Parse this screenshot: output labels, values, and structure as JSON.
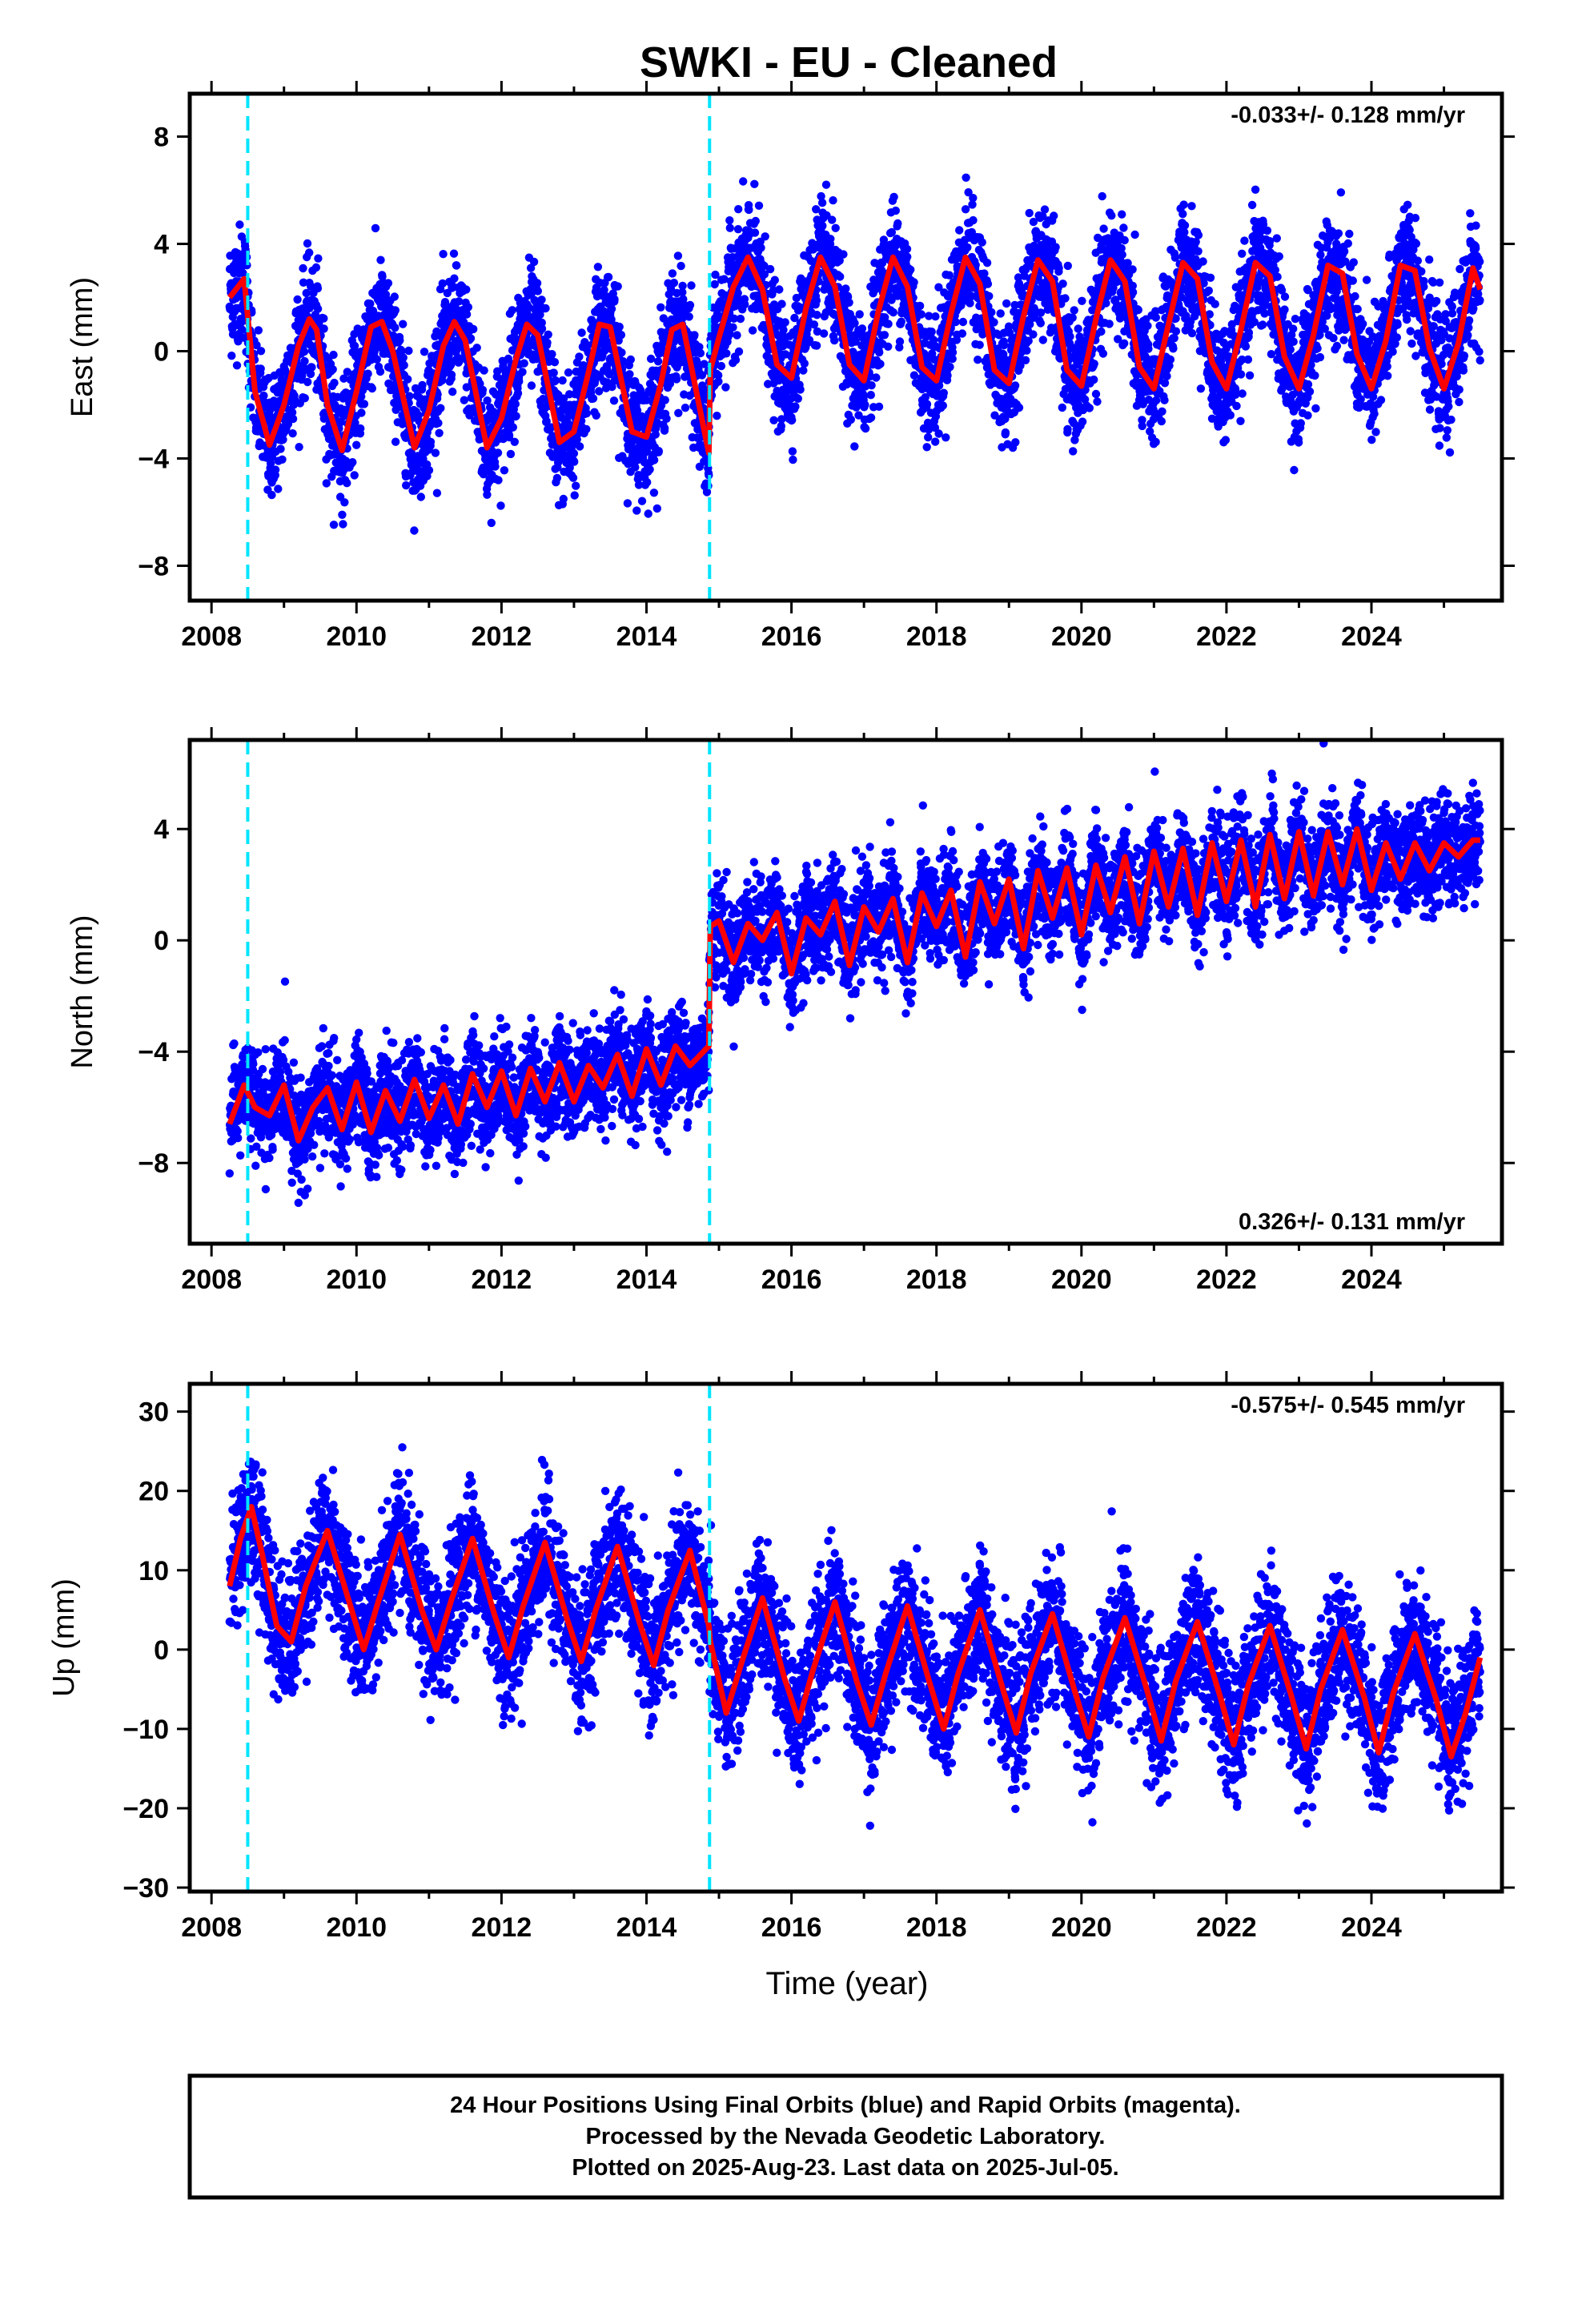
{
  "figure": {
    "title": "SWKI  - EU - Cleaned",
    "xlabel": "Time (year)",
    "footer": [
      "24 Hour Positions Using Final Orbits (blue) and Rapid Orbits (magenta).",
      "Processed by the Nevada Geodetic Laboratory.",
      "Plotted on 2025-Aug-23. Last data on 2025-Jul-05."
    ]
  },
  "colors": {
    "points": "#0000ff",
    "model": "#ff0000",
    "steps": "#00e5ff",
    "frame": "#000000"
  },
  "chart_data": [
    {
      "type": "scatter",
      "ylabel": "East (mm)",
      "rate": "-0.033+/- 0.128 mm/yr",
      "rate_position": "top-right",
      "xlim": [
        2007.7,
        2025.8
      ],
      "ylim": [
        -9.3,
        9.6
      ],
      "xticks": [
        "2008",
        "2010",
        "2012",
        "2014",
        "2016",
        "2018",
        "2020",
        "2022",
        "2024"
      ],
      "yticks": [
        "8",
        "4",
        "0",
        "−4",
        "−8"
      ],
      "ytick_values": [
        8,
        4,
        0,
        -4,
        -8
      ],
      "step_epochs": [
        2008.5,
        2014.87
      ],
      "series": [
        {
          "name": "Final Orbits (blue)",
          "x_range": [
            2008.25,
            2025.5
          ],
          "daily": true
        },
        {
          "x": [
            2008.25,
            2008.45,
            2008.6,
            2008.8,
            2009.0,
            2009.2,
            2009.35,
            2009.45,
            2009.6,
            2009.8,
            2010.0,
            2010.2,
            2010.35,
            2010.5,
            2010.8,
            2011.0,
            2011.2,
            2011.35,
            2011.5,
            2011.8,
            2012.0,
            2012.2,
            2012.35,
            2012.5,
            2012.8,
            2013.0,
            2013.2,
            2013.35,
            2013.5,
            2013.8,
            2014.0,
            2014.2,
            2014.35,
            2014.5,
            2014.86,
            2014.88,
            2015.0,
            2015.2,
            2015.4,
            2015.6,
            2015.8,
            2016.0,
            2016.2,
            2016.4,
            2016.6,
            2016.8,
            2017.0,
            2017.2,
            2017.4,
            2017.6,
            2017.8,
            2018.0,
            2018.2,
            2018.4,
            2018.6,
            2018.8,
            2019.0,
            2019.2,
            2019.4,
            2019.6,
            2019.8,
            2020.0,
            2020.2,
            2020.4,
            2020.6,
            2020.8,
            2021.0,
            2021.2,
            2021.4,
            2021.6,
            2021.8,
            2022.0,
            2022.2,
            2022.4,
            2022.6,
            2022.8,
            2023.0,
            2023.2,
            2023.4,
            2023.6,
            2023.8,
            2024.0,
            2024.2,
            2024.4,
            2024.6,
            2024.8,
            2025.0,
            2025.2,
            2025.4,
            2025.5
          ],
          "y": [
            2.0,
            2.7,
            -1.5,
            -3.5,
            -2.0,
            0.2,
            1.2,
            0.8,
            -2.0,
            -3.7,
            -1.5,
            0.9,
            1.1,
            0.0,
            -3.6,
            -2.2,
            0.2,
            1.1,
            0.4,
            -3.6,
            -2.5,
            -0.3,
            1.0,
            0.6,
            -3.4,
            -3.0,
            -0.8,
            1.0,
            0.9,
            -3.0,
            -3.2,
            -1.2,
            0.8,
            1.0,
            -3.8,
            -0.7,
            0.5,
            2.4,
            3.5,
            2.3,
            -0.5,
            -1.0,
            1.6,
            3.5,
            2.4,
            -0.5,
            -1.1,
            1.5,
            3.5,
            2.4,
            -0.6,
            -1.1,
            1.4,
            3.5,
            2.5,
            -0.7,
            -1.2,
            1.3,
            3.4,
            2.6,
            -0.7,
            -1.3,
            1.2,
            3.4,
            2.6,
            -0.6,
            -1.4,
            1.0,
            3.3,
            2.7,
            -0.4,
            -1.4,
            0.8,
            3.3,
            2.8,
            -0.2,
            -1.4,
            0.6,
            3.2,
            2.9,
            -0.1,
            -1.4,
            0.4,
            3.2,
            3.0,
            0.1,
            -1.4,
            0.3,
            3.1,
            2.3
          ]
        },
        {
          "name": "model",
          "x": [],
          "y": []
        }
      ]
    },
    {
      "type": "scatter",
      "ylabel": "North (mm)",
      "rate": "0.326+/- 0.131 mm/yr",
      "rate_position": "bottom-right",
      "xlim": [
        2007.7,
        2025.8
      ],
      "ylim": [
        -10.9,
        7.2
      ],
      "xticks": [
        "2008",
        "2010",
        "2012",
        "2014",
        "2016",
        "2018",
        "2020",
        "2022",
        "2024"
      ],
      "yticks": [
        "4",
        "0",
        "−4",
        "−8"
      ],
      "ytick_values": [
        4,
        0,
        -4,
        -8
      ],
      "step_epochs": [
        2008.5,
        2014.87
      ],
      "series": [
        {
          "name": "Final Orbits (blue)",
          "x_range": [
            2008.25,
            2025.5
          ],
          "daily": true
        },
        {
          "x": [
            2008.25,
            2008.45,
            2008.6,
            2008.8,
            2009.0,
            2009.2,
            2009.4,
            2009.6,
            2009.8,
            2010.0,
            2010.2,
            2010.4,
            2010.6,
            2010.8,
            2011.0,
            2011.2,
            2011.4,
            2011.6,
            2011.8,
            2012.0,
            2012.2,
            2012.4,
            2012.6,
            2012.8,
            2013.0,
            2013.2,
            2013.4,
            2013.6,
            2013.8,
            2014.0,
            2014.2,
            2014.4,
            2014.6,
            2014.86,
            2014.88,
            2015.0,
            2015.2,
            2015.4,
            2015.6,
            2015.8,
            2016.0,
            2016.2,
            2016.4,
            2016.6,
            2016.8,
            2017.0,
            2017.2,
            2017.4,
            2017.6,
            2017.8,
            2018.0,
            2018.2,
            2018.4,
            2018.6,
            2018.8,
            2019.0,
            2019.2,
            2019.4,
            2019.6,
            2019.8,
            2020.0,
            2020.2,
            2020.4,
            2020.6,
            2020.8,
            2021.0,
            2021.2,
            2021.4,
            2021.6,
            2021.8,
            2022.0,
            2022.2,
            2022.4,
            2022.6,
            2022.8,
            2023.0,
            2023.2,
            2023.4,
            2023.6,
            2023.8,
            2024.0,
            2024.2,
            2024.4,
            2024.6,
            2024.8,
            2025.0,
            2025.2,
            2025.4,
            2025.5
          ],
          "y": [
            -6.6,
            -5.2,
            -6.0,
            -6.3,
            -5.2,
            -7.2,
            -6.0,
            -5.3,
            -6.8,
            -5.1,
            -6.9,
            -5.4,
            -6.5,
            -5.0,
            -6.4,
            -5.2,
            -6.6,
            -4.8,
            -6.0,
            -4.7,
            -6.3,
            -4.6,
            -5.8,
            -4.4,
            -5.8,
            -4.5,
            -5.3,
            -4.1,
            -5.6,
            -3.9,
            -5.2,
            -3.8,
            -4.5,
            -3.8,
            0.5,
            0.7,
            -0.8,
            0.6,
            0.0,
            1.0,
            -1.2,
            0.8,
            0.2,
            1.4,
            -0.9,
            1.2,
            0.3,
            1.5,
            -0.8,
            1.7,
            0.5,
            1.8,
            -0.6,
            2.1,
            0.6,
            2.2,
            -0.3,
            2.5,
            0.8,
            2.6,
            0.2,
            2.7,
            1.0,
            3.0,
            0.6,
            3.2,
            1.2,
            3.3,
            0.9,
            3.5,
            1.4,
            3.6,
            1.2,
            3.8,
            1.5,
            3.9,
            1.6,
            3.9,
            2.0,
            4.0,
            1.8,
            3.5,
            2.2,
            3.5,
            2.5,
            3.5,
            3.0,
            3.6,
            3.6
          ]
        },
        {
          "name": "model",
          "x": [],
          "y": []
        }
      ]
    },
    {
      "type": "scatter",
      "ylabel": "Up (mm)",
      "rate": "-0.575+/- 0.545 mm/yr",
      "rate_position": "top-right",
      "xlim": [
        2007.7,
        2025.8
      ],
      "ylim": [
        -30.5,
        33.5
      ],
      "xticks": [
        "2008",
        "2010",
        "2012",
        "2014",
        "2016",
        "2018",
        "2020",
        "2022",
        "2024"
      ],
      "yticks": [
        "30",
        "20",
        "10",
        "0",
        "−10",
        "−20",
        "−30"
      ],
      "ytick_values": [
        30,
        20,
        10,
        0,
        -10,
        -20,
        -30
      ],
      "step_epochs": [
        2008.5,
        2014.87
      ],
      "series": [
        {
          "name": "Final Orbits (blue)",
          "x_range": [
            2008.25,
            2025.5
          ],
          "daily": true
        },
        {
          "x": [
            2008.25,
            2008.4,
            2008.55,
            2008.7,
            2008.9,
            2009.1,
            2009.3,
            2009.6,
            2009.9,
            2010.1,
            2010.3,
            2010.6,
            2010.9,
            2011.1,
            2011.3,
            2011.6,
            2011.9,
            2012.1,
            2012.3,
            2012.6,
            2012.9,
            2013.1,
            2013.3,
            2013.6,
            2013.9,
            2014.1,
            2014.3,
            2014.6,
            2014.86,
            2014.88,
            2015.1,
            2015.3,
            2015.6,
            2015.9,
            2016.1,
            2016.3,
            2016.6,
            2016.9,
            2017.1,
            2017.3,
            2017.6,
            2017.9,
            2018.1,
            2018.3,
            2018.6,
            2018.9,
            2019.1,
            2019.3,
            2019.6,
            2019.9,
            2020.1,
            2020.3,
            2020.6,
            2020.9,
            2021.1,
            2021.3,
            2021.6,
            2021.9,
            2022.1,
            2022.3,
            2022.6,
            2022.9,
            2023.1,
            2023.3,
            2023.6,
            2023.9,
            2024.1,
            2024.3,
            2024.6,
            2024.9,
            2025.1,
            2025.3,
            2025.5
          ],
          "y": [
            8.0,
            14.0,
            18.0,
            12.0,
            3.0,
            1.0,
            8.0,
            15.0,
            6.0,
            0.0,
            6.0,
            14.5,
            5.0,
            0.0,
            6.0,
            14.0,
            4.5,
            -1.0,
            5.5,
            13.5,
            4.0,
            -1.5,
            5.0,
            13.0,
            3.5,
            -2.0,
            5.0,
            12.5,
            3.0,
            1.0,
            -8.0,
            -2.0,
            6.5,
            -3.5,
            -9.0,
            -2.5,
            6.0,
            -4.0,
            -9.5,
            -3.0,
            5.5,
            -4.0,
            -10.0,
            -3.0,
            5.0,
            -4.5,
            -10.5,
            -3.0,
            4.5,
            -5.0,
            -11.0,
            -3.5,
            4.0,
            -5.0,
            -11.5,
            -4.0,
            3.5,
            -5.5,
            -12.0,
            -4.5,
            3.0,
            -6.0,
            -12.5,
            -5.0,
            2.5,
            -6.0,
            -13.0,
            -5.5,
            2.0,
            -6.5,
            -13.5,
            -8.0,
            -1.0
          ]
        },
        {
          "name": "model",
          "x": [],
          "y": []
        }
      ]
    }
  ]
}
